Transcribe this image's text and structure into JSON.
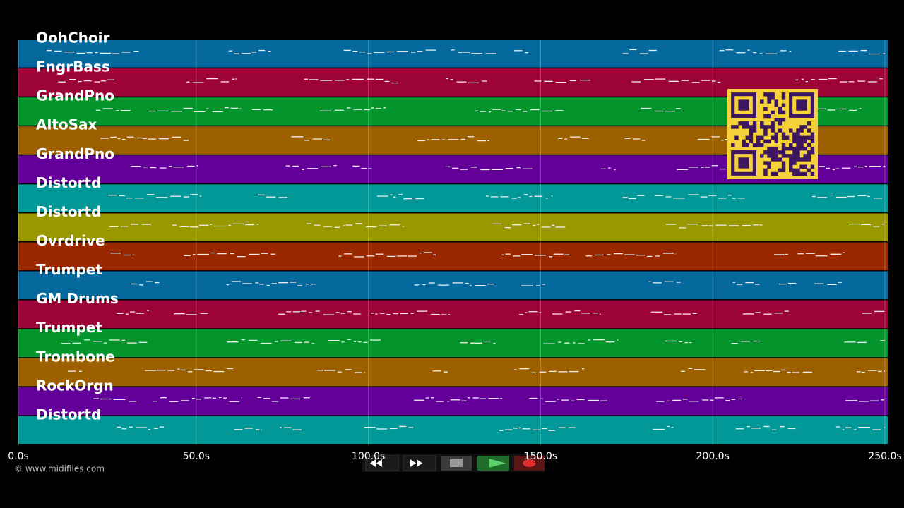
{
  "tracks": [
    {
      "name": "OohChoir",
      "color": "#05699e"
    },
    {
      "name": "FngrBass",
      "color": "#9c0338"
    },
    {
      "name": "GrandPno",
      "color": "#03942b"
    },
    {
      "name": "AltoSax",
      "color": "#9c6000"
    },
    {
      "name": "GrandPno",
      "color": "#620099"
    },
    {
      "name": "Distortd",
      "color": "#039898"
    },
    {
      "name": "Distortd",
      "color": "#999800"
    },
    {
      "name": "Ovrdrive",
      "color": "#992800"
    },
    {
      "name": "Trumpet",
      "color": "#05699e"
    },
    {
      "name": "GM Drums",
      "color": "#9c0338"
    },
    {
      "name": "Trumpet",
      "color": "#03942b"
    },
    {
      "name": "Trombone",
      "color": "#9c6000"
    },
    {
      "name": "RockOrgn",
      "color": "#620099"
    },
    {
      "name": "Distortd",
      "color": "#039898"
    }
  ],
  "timeline": {
    "ticks": [
      "0.0s",
      "50.0s",
      "100.0s",
      "150.0s",
      "200.0s",
      "250.0s"
    ]
  },
  "footer": {
    "copyright": "© www.midifiles.com"
  }
}
